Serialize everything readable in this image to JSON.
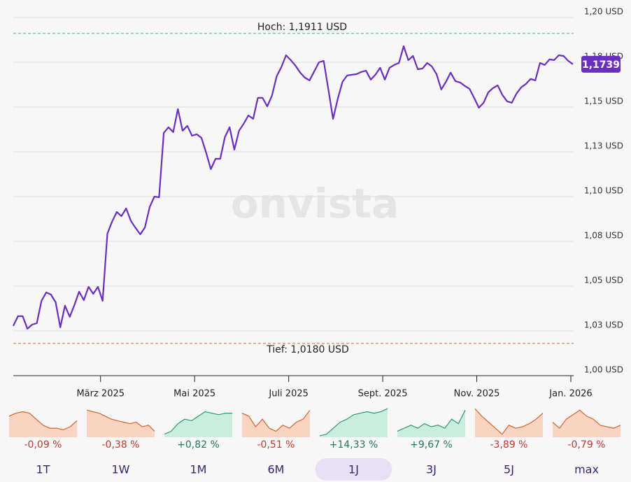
{
  "chart_data": {
    "type": "line",
    "watermark": "onvista",
    "color": "#6a2ec0",
    "grid": true,
    "ylim": [
      1.0,
      1.2
    ],
    "yticks": [
      {
        "value": 1.2,
        "label": "1,20 USD"
      },
      {
        "value": 1.175,
        "label": "1,18 USD"
      },
      {
        "value": 1.15,
        "label": "1,15 USD"
      },
      {
        "value": 1.125,
        "label": "1,13 USD"
      },
      {
        "value": 1.1,
        "label": "1,10 USD"
      },
      {
        "value": 1.075,
        "label": "1,08 USD"
      },
      {
        "value": 1.05,
        "label": "1,05 USD"
      },
      {
        "value": 1.025,
        "label": "1,03 USD"
      },
      {
        "value": 1.0,
        "label": "1,00 USD"
      }
    ],
    "high": {
      "value": 1.1911,
      "label": "Hoch: 1,1911 USD",
      "color": "#3fb6c8"
    },
    "low": {
      "value": 1.018,
      "label": "Tief: 1,0180 USD",
      "color": "#e0692c"
    },
    "current": {
      "value": 1.1739,
      "label": "1,1739"
    },
    "categories": [
      null,
      null,
      null,
      null,
      null,
      null,
      null,
      null,
      null,
      null,
      null,
      null,
      null,
      null,
      null,
      null,
      null,
      null,
      null,
      "März 2025",
      null,
      null,
      null,
      null,
      null,
      null,
      null,
      null,
      null,
      null,
      null,
      null,
      null,
      null,
      null,
      null,
      null,
      null,
      null,
      "Mai 2025",
      null,
      null,
      null,
      null,
      null,
      null,
      null,
      null,
      null,
      null,
      null,
      null,
      null,
      null,
      null,
      null,
      null,
      null,
      null,
      "Juli 2025",
      null,
      null,
      null,
      null,
      null,
      null,
      null,
      null,
      null,
      null,
      null,
      null,
      null,
      null,
      null,
      null,
      null,
      null,
      null,
      "Sept. 2025",
      null,
      null,
      null,
      null,
      null,
      null,
      null,
      null,
      null,
      null,
      null,
      null,
      null,
      null,
      null,
      null,
      null,
      null,
      null,
      "Nov. 2025",
      null,
      null,
      null,
      null,
      null,
      null,
      null,
      null,
      null,
      null,
      null,
      null,
      null,
      null,
      null,
      null,
      null,
      null,
      null,
      "Jan. 2026"
    ],
    "values": [
      1.0278,
      1.0332,
      1.0332,
      1.0262,
      1.0285,
      1.0293,
      1.0418,
      1.0465,
      1.0453,
      1.041,
      1.027,
      1.0391,
      1.0328,
      1.0395,
      1.0469,
      1.0422,
      1.0496,
      1.0457,
      1.0496,
      1.0418,
      1.0793,
      1.086,
      1.0914,
      1.0891,
      1.0934,
      1.0864,
      1.0825,
      1.0789,
      1.0828,
      1.0942,
      1.1,
      1.0996,
      1.1356,
      1.1387,
      1.136,
      1.1489,
      1.1368,
      1.1395,
      1.134,
      1.1348,
      1.1328,
      1.1246,
      1.1153,
      1.1211,
      1.1211,
      1.1332,
      1.1387,
      1.1262,
      1.1368,
      1.1407,
      1.1453,
      1.1434,
      1.1551,
      1.1551,
      1.1504,
      1.1563,
      1.1672,
      1.1723,
      1.1789,
      1.1762,
      1.1731,
      1.1692,
      1.1664,
      1.1649,
      1.17,
      1.175,
      1.1758,
      1.1598,
      1.1434,
      1.1547,
      1.1641,
      1.1676,
      1.168,
      1.1684,
      1.1696,
      1.1703,
      1.1653,
      1.168,
      1.1719,
      1.1653,
      1.1719,
      1.1735,
      1.1746,
      1.184,
      1.1762,
      1.1785,
      1.1711,
      1.1715,
      1.1746,
      1.1727,
      1.1684,
      1.1598,
      1.1641,
      1.1692,
      1.1645,
      1.1637,
      1.1618,
      1.1602,
      1.1551,
      1.1496,
      1.1524,
      1.1582,
      1.1606,
      1.1621,
      1.1567,
      1.1532,
      1.1524,
      1.1575,
      1.161,
      1.1629,
      1.1657,
      1.1649,
      1.1746,
      1.1735,
      1.1766,
      1.1762,
      1.1789,
      1.1785,
      1.1758,
      1.1739
    ],
    "selected": 4,
    "periods": [
      {
        "name": "1T",
        "change": -0.09,
        "change_label": "-0,09 %",
        "sparkline": [
          0.7,
          0.8,
          0.85,
          0.8,
          0.6,
          0.4,
          0.3,
          0.3,
          0.25,
          0.35,
          0.55
        ]
      },
      {
        "name": "1W",
        "change": -0.38,
        "change_label": "-0,38 %",
        "sparkline": [
          0.9,
          0.85,
          0.8,
          0.7,
          0.6,
          0.55,
          0.5,
          0.45,
          0.5,
          0.35,
          0.4,
          0.2
        ]
      },
      {
        "name": "1M",
        "change": 0.82,
        "change_label": "+0,82 %",
        "sparkline": [
          0.1,
          0.2,
          0.45,
          0.6,
          0.55,
          0.7,
          0.85,
          0.8,
          0.75,
          0.8,
          0.8
        ]
      },
      {
        "name": "6M",
        "change": -0.51,
        "change_label": "-0,51 %",
        "sparkline": [
          0.8,
          0.7,
          0.35,
          0.6,
          0.3,
          0.2,
          0.4,
          0.3,
          0.5,
          0.6,
          0.9
        ]
      },
      {
        "name": "1J",
        "change": 14.33,
        "change_label": "+14,33 %",
        "sparkline": [
          0.05,
          0.1,
          0.3,
          0.5,
          0.6,
          0.75,
          0.8,
          0.85,
          0.8,
          0.85,
          0.95
        ]
      },
      {
        "name": "3J",
        "change": 9.67,
        "change_label": "+9,67 %",
        "sparkline": [
          0.2,
          0.3,
          0.4,
          0.3,
          0.45,
          0.35,
          0.4,
          0.3,
          0.6,
          0.45,
          0.9
        ]
      },
      {
        "name": "5J",
        "change": -3.89,
        "change_label": "-3,89 %",
        "sparkline": [
          0.95,
          0.7,
          0.5,
          0.3,
          0.1,
          0.4,
          0.3,
          0.35,
          0.45,
          0.6,
          0.8
        ]
      },
      {
        "name": "max",
        "change": -0.79,
        "change_label": "-0,79 %",
        "sparkline": [
          0.5,
          0.3,
          0.6,
          0.75,
          0.9,
          0.7,
          0.6,
          0.4,
          0.35,
          0.3,
          0.4
        ]
      }
    ]
  }
}
